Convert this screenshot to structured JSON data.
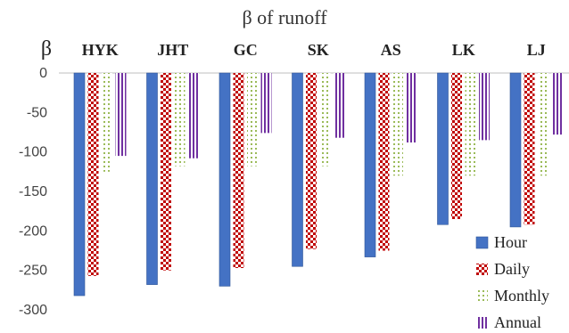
{
  "chart_data": {
    "type": "bar",
    "title": "β of runoff",
    "ylabel": "β",
    "xlabel": "",
    "categories": [
      "HYK",
      "JHT",
      "GC",
      "SK",
      "AS",
      "LK",
      "LJ"
    ],
    "ylim": [
      -300,
      0
    ],
    "yticks": [
      0,
      -50,
      -100,
      -150,
      -200,
      -250,
      -300
    ],
    "grid": false,
    "legend_position": "bottom-right",
    "series": [
      {
        "name": "Hour",
        "pattern": "solid",
        "color": "#4472C4",
        "values": [
          -282,
          -268,
          -270,
          -245,
          -233,
          -192,
          -195
        ]
      },
      {
        "name": "Daily",
        "pattern": "checker",
        "color": "#C00000",
        "values": [
          -257,
          -250,
          -247,
          -223,
          -225,
          -185,
          -192
        ]
      },
      {
        "name": "Monthly",
        "pattern": "dots",
        "color": "#9BBB59",
        "values": [
          -125,
          -118,
          -118,
          -118,
          -130,
          -130,
          -130
        ]
      },
      {
        "name": "Annual",
        "pattern": "vertical-stripes",
        "color": "#7030A0",
        "values": [
          -105,
          -108,
          -76,
          -82,
          -88,
          -85,
          -78
        ]
      }
    ]
  }
}
